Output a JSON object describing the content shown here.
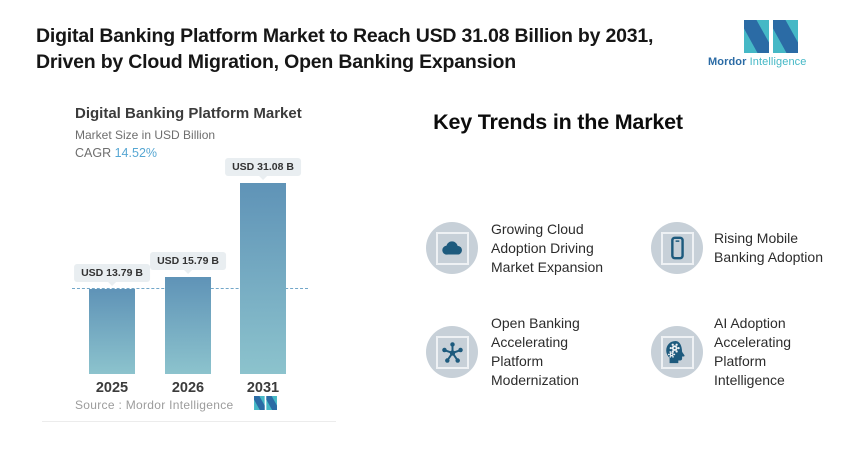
{
  "header": {
    "title_line1": "Digital Banking Platform Market to Reach USD 31.08 Billion by 2031,",
    "title_line2": "Driven by Cloud Migration, Open Banking Expansion",
    "logo": {
      "brand_bold": "Mordor",
      "brand_light": "Intelligence"
    }
  },
  "chart": {
    "title": "Digital Banking Platform Market",
    "subtitle": "Market Size in USD Billion",
    "cagr_label": "CAGR",
    "cagr_value": "14.52%",
    "source_text": "Source :  Mordor Intelligence",
    "bars": [
      {
        "year": "2025",
        "label": "USD 13.79 B",
        "value": 13.79
      },
      {
        "year": "2026",
        "label": "USD 15.79 B",
        "value": 15.79
      },
      {
        "year": "2031",
        "label": "USD 31.08 B",
        "value": 31.08
      }
    ]
  },
  "chart_data": {
    "type": "bar",
    "title": "Digital Banking Platform Market",
    "ylabel": "Market Size in USD Billion",
    "categories": [
      "2025",
      "2026",
      "2031"
    ],
    "values": [
      13.79,
      15.79,
      31.08
    ],
    "data_labels": [
      "USD 13.79 B",
      "USD 15.79 B",
      "USD 31.08 B"
    ],
    "cagr": "14.52%",
    "reference_line_value": 13.79,
    "grid": false,
    "legend": false,
    "source": "Mordor Intelligence"
  },
  "trends": {
    "heading": "Key Trends in the Market",
    "items": [
      {
        "icon": "cloud-icon",
        "text": "Growing Cloud Adoption Driving Market Expansion"
      },
      {
        "icon": "mobile-icon",
        "text": "Rising Mobile Banking Adoption"
      },
      {
        "icon": "network-icon",
        "text": "Open Banking Accelerating Platform Modernization"
      },
      {
        "icon": "ai-head-icon",
        "text": "AI Adoption Accelerating Platform Intelligence"
      }
    ]
  },
  "colors": {
    "bar_top": "#5f93b7",
    "bar_bottom": "#8cc3cd",
    "dashed_line": "#72a7c9",
    "cagr_value": "#57a7d3",
    "pill_bg": "#e9eef1",
    "icon_circle_bg": "#c7d0d8",
    "icon_glyph": "#1d5a7d",
    "brand_blue": "#2b6ba5",
    "brand_teal": "#45b8c6"
  }
}
